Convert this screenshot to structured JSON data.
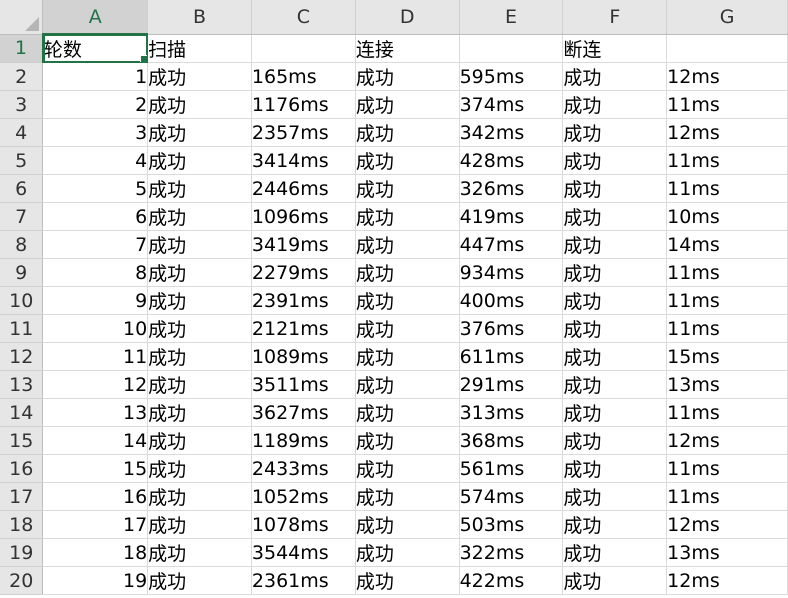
{
  "spreadsheet": {
    "column_headers": [
      "A",
      "B",
      "C",
      "D",
      "E",
      "F",
      "G"
    ],
    "selected_cell": "A1",
    "header_row": {
      "row_number": "1",
      "cells": [
        "轮数",
        "扫描",
        "",
        "连接",
        "",
        "断连",
        ""
      ]
    },
    "rows": [
      {
        "row_number": "2",
        "round": "1",
        "scan_status": "成功",
        "scan_time": "165ms",
        "connect_status": "成功",
        "connect_time": "595ms",
        "disconnect_status": "成功",
        "disconnect_time": "12ms"
      },
      {
        "row_number": "3",
        "round": "2",
        "scan_status": "成功",
        "scan_time": "1176ms",
        "connect_status": "成功",
        "connect_time": "374ms",
        "disconnect_status": "成功",
        "disconnect_time": "11ms"
      },
      {
        "row_number": "4",
        "round": "3",
        "scan_status": "成功",
        "scan_time": "2357ms",
        "connect_status": "成功",
        "connect_time": "342ms",
        "disconnect_status": "成功",
        "disconnect_time": "12ms"
      },
      {
        "row_number": "5",
        "round": "4",
        "scan_status": "成功",
        "scan_time": "3414ms",
        "connect_status": "成功",
        "connect_time": "428ms",
        "disconnect_status": "成功",
        "disconnect_time": "11ms"
      },
      {
        "row_number": "6",
        "round": "5",
        "scan_status": "成功",
        "scan_time": "2446ms",
        "connect_status": "成功",
        "connect_time": "326ms",
        "disconnect_status": "成功",
        "disconnect_time": "11ms"
      },
      {
        "row_number": "7",
        "round": "6",
        "scan_status": "成功",
        "scan_time": "1096ms",
        "connect_status": "成功",
        "connect_time": "419ms",
        "disconnect_status": "成功",
        "disconnect_time": "10ms"
      },
      {
        "row_number": "8",
        "round": "7",
        "scan_status": "成功",
        "scan_time": "3419ms",
        "connect_status": "成功",
        "connect_time": "447ms",
        "disconnect_status": "成功",
        "disconnect_time": "14ms"
      },
      {
        "row_number": "9",
        "round": "8",
        "scan_status": "成功",
        "scan_time": "2279ms",
        "connect_status": "成功",
        "connect_time": "934ms",
        "disconnect_status": "成功",
        "disconnect_time": "11ms"
      },
      {
        "row_number": "10",
        "round": "9",
        "scan_status": "成功",
        "scan_time": "2391ms",
        "connect_status": "成功",
        "connect_time": "400ms",
        "disconnect_status": "成功",
        "disconnect_time": "11ms"
      },
      {
        "row_number": "11",
        "round": "10",
        "scan_status": "成功",
        "scan_time": "2121ms",
        "connect_status": "成功",
        "connect_time": "376ms",
        "disconnect_status": "成功",
        "disconnect_time": "11ms"
      },
      {
        "row_number": "12",
        "round": "11",
        "scan_status": "成功",
        "scan_time": "1089ms",
        "connect_status": "成功",
        "connect_time": "611ms",
        "disconnect_status": "成功",
        "disconnect_time": "15ms"
      },
      {
        "row_number": "13",
        "round": "12",
        "scan_status": "成功",
        "scan_time": "3511ms",
        "connect_status": "成功",
        "connect_time": "291ms",
        "disconnect_status": "成功",
        "disconnect_time": "13ms"
      },
      {
        "row_number": "14",
        "round": "13",
        "scan_status": "成功",
        "scan_time": "3627ms",
        "connect_status": "成功",
        "connect_time": "313ms",
        "disconnect_status": "成功",
        "disconnect_time": "11ms"
      },
      {
        "row_number": "15",
        "round": "14",
        "scan_status": "成功",
        "scan_time": "1189ms",
        "connect_status": "成功",
        "connect_time": "368ms",
        "disconnect_status": "成功",
        "disconnect_time": "12ms"
      },
      {
        "row_number": "16",
        "round": "15",
        "scan_status": "成功",
        "scan_time": "2433ms",
        "connect_status": "成功",
        "connect_time": "561ms",
        "disconnect_status": "成功",
        "disconnect_time": "11ms"
      },
      {
        "row_number": "17",
        "round": "16",
        "scan_status": "成功",
        "scan_time": "1052ms",
        "connect_status": "成功",
        "connect_time": "574ms",
        "disconnect_status": "成功",
        "disconnect_time": "11ms"
      },
      {
        "row_number": "18",
        "round": "17",
        "scan_status": "成功",
        "scan_time": "1078ms",
        "connect_status": "成功",
        "connect_time": "503ms",
        "disconnect_status": "成功",
        "disconnect_time": "12ms"
      },
      {
        "row_number": "19",
        "round": "18",
        "scan_status": "成功",
        "scan_time": "3544ms",
        "connect_status": "成功",
        "connect_time": "322ms",
        "disconnect_status": "成功",
        "disconnect_time": "13ms"
      },
      {
        "row_number": "20",
        "round": "19",
        "scan_status": "成功",
        "scan_time": "2361ms",
        "connect_status": "成功",
        "connect_time": "422ms",
        "disconnect_status": "成功",
        "disconnect_time": "12ms"
      }
    ],
    "colors": {
      "accent": "#217346",
      "header_bg": "#e6e6e6",
      "gridline": "#dadada"
    }
  }
}
